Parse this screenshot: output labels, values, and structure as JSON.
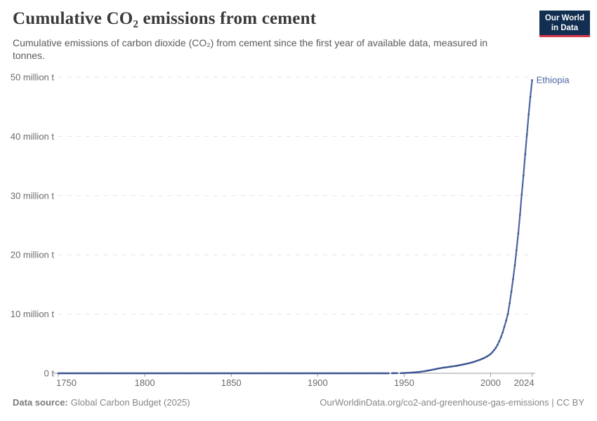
{
  "header": {
    "title": "Cumulative CO₂ emissions from cement",
    "subtitle": "Cumulative emissions of carbon dioxide (CO₂) from cement since the first year of available data, measured in tonnes.",
    "logo": {
      "line1": "Our World",
      "line2": "in Data"
    }
  },
  "footer": {
    "datasource_label": "Data source:",
    "datasource_value": "Global Carbon Budget (2025)",
    "credit": "OurWorldinData.org/co2-and-greenhouse-gas-emissions | CC BY"
  },
  "colors": {
    "line": "#4b66a0",
    "marker": "#3a5390",
    "gridline": "#e3e3e3",
    "axis": "#9a9a9a",
    "tick_label": "#6b6b6b",
    "logo_navy": "#122e51",
    "logo_red": "#d93a4b"
  },
  "chart_data": {
    "type": "line",
    "title": "Cumulative CO₂ emissions from cement",
    "entity_label": "Ethiopia",
    "unit": "tonnes",
    "values_unit": "million tonnes",
    "grid": "horizontal dashed",
    "legend_position": "end-of-line label",
    "x_axis": {
      "range": [
        1750,
        2024
      ],
      "ticks": [
        1750,
        1800,
        1850,
        1900,
        1950,
        2000,
        2024
      ]
    },
    "y_axis": {
      "range": [
        0,
        50
      ],
      "ticks": [
        {
          "value": 0,
          "label": "0 t"
        },
        {
          "value": 10,
          "label": "10 million t"
        },
        {
          "value": 20,
          "label": "20 million t"
        },
        {
          "value": 30,
          "label": "30 million t"
        },
        {
          "value": 40,
          "label": "40 million t"
        },
        {
          "value": 50,
          "label": "50 million t"
        }
      ]
    },
    "series": [
      {
        "name": "Ethiopia",
        "color": "#4b66a0",
        "marker_color": "#3a5390",
        "segments": [
          {
            "points": [
              [
                1750,
                0
              ],
              [
                1941,
                0
              ]
            ]
          },
          {
            "points": [
              [
                1943,
                0.01
              ],
              [
                1946,
                0.02
              ]
            ]
          },
          {
            "points": [
              [
                1948,
                0.02
              ],
              [
                1950,
                0.05
              ],
              [
                1952,
                0.08
              ],
              [
                1954,
                0.11
              ],
              [
                1956,
                0.15
              ],
              [
                1958,
                0.2
              ],
              [
                1960,
                0.27
              ],
              [
                1962,
                0.36
              ],
              [
                1964,
                0.47
              ],
              [
                1966,
                0.58
              ],
              [
                1968,
                0.7
              ],
              [
                1970,
                0.82
              ],
              [
                1972,
                0.92
              ],
              [
                1974,
                1.0
              ],
              [
                1976,
                1.08
              ],
              [
                1978,
                1.16
              ],
              [
                1980,
                1.25
              ],
              [
                1982,
                1.36
              ],
              [
                1984,
                1.48
              ],
              [
                1986,
                1.6
              ],
              [
                1988,
                1.74
              ],
              [
                1990,
                1.9
              ],
              [
                1992,
                2.1
              ],
              [
                1994,
                2.3
              ],
              [
                1996,
                2.55
              ],
              [
                1998,
                2.85
              ],
              [
                2000,
                3.25
              ],
              [
                2001,
                3.55
              ],
              [
                2002,
                3.9
              ],
              [
                2003,
                4.3
              ],
              [
                2004,
                4.8
              ],
              [
                2005,
                5.4
              ],
              [
                2006,
                6.1
              ],
              [
                2007,
                6.9
              ],
              [
                2008,
                7.9
              ],
              [
                2009,
                8.9
              ],
              [
                2010,
                10.0
              ],
              [
                2011,
                11.8
              ],
              [
                2012,
                13.8
              ],
              [
                2013,
                15.9
              ],
              [
                2014,
                18.2
              ],
              [
                2015,
                20.8
              ],
              [
                2016,
                23.6
              ],
              [
                2017,
                26.8
              ],
              [
                2018,
                30.2
              ],
              [
                2019,
                33.4
              ],
              [
                2020,
                37.0
              ],
              [
                2021,
                40.3
              ],
              [
                2022,
                43.7
              ],
              [
                2023,
                46.7
              ],
              [
                2024,
                49.5
              ]
            ]
          }
        ]
      }
    ]
  }
}
